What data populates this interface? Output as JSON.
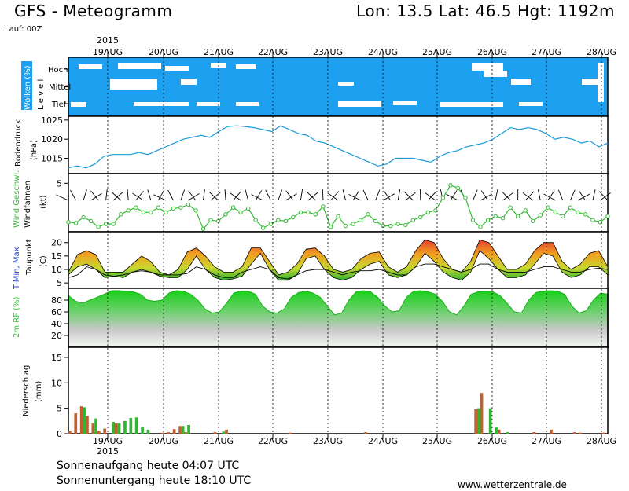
{
  "header": {
    "title": "GFS - Meteogramm",
    "location": "Lon: 13.5 Lat: 46.5 Hgt: 1192m",
    "run": "Lauf: 00Z",
    "year": "2015"
  },
  "footer": {
    "sunrise": "Sonnenaufgang heute 04:07 UTC",
    "sunset": "Sonnenuntergang heute 18:10 UTC",
    "credit": "www.wetterzentrale.de"
  },
  "colors": {
    "cloud_bg": "#1ea0f0",
    "pressure_line": "#1a9ad6",
    "wind_line": "#33bb33",
    "temp_max_label": "#e53030",
    "temp_min_label": "#2040e0",
    "humidity_green": "#2ad02a",
    "rain_green": "#32b432",
    "rain_brown": "#c06030"
  },
  "chart_data": [
    {
      "type": "heatmap",
      "panel": "clouds",
      "ylabel": "Wolken (%)",
      "ylabel2": "L e v e l",
      "levels": [
        "Hoch",
        "Mittel",
        "Tief"
      ],
      "x": [
        "19AUG",
        "20AUG",
        "21AUG",
        "22AUG",
        "23AUG",
        "24AUG",
        "25AUG",
        "26AUG",
        "27AUG",
        "28AUG"
      ]
    },
    {
      "type": "line",
      "panel": "pressure",
      "ylabel": "Bodendruck",
      "ylabel2": "(hPa)",
      "yticks": [
        1015,
        1020,
        1025
      ],
      "ylim": [
        1011,
        1026
      ],
      "values": [
        1012.5,
        1013,
        1012.5,
        1013.5,
        1015.5,
        1016,
        1016,
        1016,
        1016.5,
        1016,
        1017,
        1018,
        1019,
        1020,
        1020.5,
        1021,
        1020.5,
        1022,
        1023.3,
        1023.5,
        1023.3,
        1023,
        1022.5,
        1022,
        1023.5,
        1022.5,
        1021.5,
        1021,
        1019.5,
        1019,
        1018,
        1017,
        1016,
        1015,
        1014,
        1013,
        1013.5,
        1015,
        1015,
        1015,
        1014.5,
        1014,
        1015.5,
        1016.5,
        1017,
        1018,
        1018.5,
        1019,
        1020,
        1021.5,
        1023,
        1022.5,
        1023,
        1022.5,
        1021.5,
        1020,
        1020.5,
        1020,
        1019,
        1019.5,
        1018,
        1019
      ]
    },
    {
      "type": "line",
      "panel": "wind",
      "ylabel": "Wind Geschwi.",
      "ylabel2": "Windfahnen",
      "ylabel3": "(kt)",
      "yticks": [
        5
      ],
      "ylim": [
        0,
        6
      ],
      "values": [
        1,
        0.9,
        1.5,
        1.1,
        0.5,
        0.8,
        0.8,
        1.8,
        2.2,
        2.5,
        2,
        2,
        2.5,
        2,
        2.4,
        2.5,
        2.8,
        2.2,
        0.3,
        1.2,
        1.1,
        1.8,
        2.5,
        2,
        2.4,
        1.2,
        0.4,
        0.8,
        1.2,
        1.1,
        1.5,
        2,
        2,
        1.8,
        2.6,
        0.5,
        1.6,
        0.6,
        0.8,
        1.2,
        1.8,
        1.1,
        0.6,
        0.6,
        0.8,
        0.7,
        1.2,
        1.5,
        2,
        2.2,
        3.5,
        4.8,
        4.5,
        3.5,
        1.2,
        0.5,
        1.2,
        1.6,
        1.4,
        2.5,
        1.6,
        2.2,
        1.1,
        1.7,
        2.5,
        2,
        1.6,
        2.5,
        2,
        1.8,
        1.2,
        1,
        1.6
      ]
    },
    {
      "type": "area",
      "panel": "temperature",
      "ylabel": "T-Min, Max",
      "ylabel2": "Taupunkt",
      "ylabel3": "(C)",
      "yticks": [
        5,
        10,
        15,
        20
      ],
      "ylim": [
        3,
        24
      ],
      "series": [
        {
          "name": "Max",
          "values": [
            9,
            15.5,
            17,
            15.5,
            9,
            9,
            9,
            12,
            15,
            13,
            9,
            8,
            10,
            16.5,
            18,
            15,
            11,
            9,
            9,
            11,
            18,
            18,
            13,
            8,
            9,
            12,
            17.5,
            18,
            15,
            10,
            9,
            10,
            14,
            16,
            16.5,
            11,
            9,
            11,
            17,
            21,
            20,
            14,
            10,
            9,
            13,
            21,
            20,
            15,
            10,
            10,
            12,
            17,
            20,
            20,
            13,
            10,
            12,
            16,
            17,
            11
          ]
        },
        {
          "name": "Min",
          "values": [
            8,
            11,
            12,
            10,
            7,
            7.5,
            7,
            9,
            10,
            9,
            7.5,
            7,
            7,
            10,
            15,
            10,
            7,
            6,
            6.5,
            7.5,
            12,
            16,
            10,
            6,
            6,
            8,
            14,
            15,
            10,
            7,
            6,
            7,
            10,
            12,
            13,
            8,
            7,
            8,
            11,
            16,
            13,
            9,
            7,
            6,
            9,
            17,
            14,
            10,
            7,
            7,
            8,
            12,
            16,
            15,
            9,
            7,
            8,
            11,
            11,
            8
          ]
        },
        {
          "name": "Taupunkt",
          "values": [
            7,
            8,
            11,
            10,
            8,
            7.5,
            8,
            9,
            9.5,
            9,
            8,
            8,
            8,
            8.5,
            11,
            10,
            8,
            7,
            7,
            9,
            10,
            11,
            10,
            7,
            6.5,
            8,
            9.5,
            10,
            10,
            9,
            8,
            9,
            9.5,
            9.5,
            10,
            9,
            8,
            8,
            11,
            12,
            12,
            11,
            10,
            9,
            10,
            12,
            12,
            10,
            9,
            9,
            9,
            10,
            11,
            11,
            10,
            9,
            9,
            10,
            10.5,
            10
          ]
        }
      ]
    },
    {
      "type": "area",
      "panel": "humidity",
      "ylabel": "2m RF (%)",
      "yticks": [
        20,
        40,
        60,
        80
      ],
      "ylim": [
        0,
        100
      ],
      "values": [
        88,
        78,
        75,
        80,
        85,
        90,
        96,
        96,
        95,
        94,
        90,
        80,
        78,
        80,
        92,
        96,
        95,
        90,
        80,
        65,
        58,
        60,
        75,
        92,
        95,
        95,
        90,
        70,
        60,
        58,
        65,
        85,
        93,
        95,
        92,
        85,
        70,
        55,
        58,
        80,
        94,
        96,
        94,
        85,
        70,
        60,
        62,
        85,
        95,
        96,
        94,
        90,
        78,
        60,
        55,
        70,
        90,
        94,
        95,
        94,
        88,
        75,
        60,
        58,
        80,
        93,
        95,
        96,
        95,
        90,
        70,
        58,
        62,
        80,
        92,
        90
      ]
    },
    {
      "type": "bar",
      "panel": "precipitation",
      "ylabel": "Niederschlag",
      "ylabel2": "(mm)",
      "yticks": [
        0,
        5,
        10,
        15
      ],
      "ylim": [
        0,
        17
      ],
      "series": [
        {
          "name": "brown",
          "values": [
            0.5,
            4,
            5.4,
            3.5,
            2,
            0.6,
            1,
            0,
            2,
            0,
            0,
            0,
            0,
            0,
            0,
            0,
            0.2,
            0.3,
            0.9,
            1.5,
            0.3,
            0,
            0,
            0,
            0,
            0.3,
            0,
            0.8,
            0,
            0,
            0,
            0,
            0,
            0,
            0,
            0,
            0,
            0,
            0.2,
            0,
            0,
            0,
            0,
            0,
            0,
            0,
            0,
            0,
            0,
            0,
            0,
            0.3,
            0,
            0,
            0,
            0,
            0,
            0,
            0,
            0,
            0,
            0,
            0,
            0,
            0,
            0,
            0,
            0,
            0,
            0,
            4.8,
            8,
            0,
            0,
            0.8,
            0,
            0,
            0,
            0,
            0,
            0.3,
            0,
            0,
            0.8,
            0,
            0,
            0,
            0.3,
            0.2,
            0,
            0,
            0,
            0.2
          ]
        },
        {
          "name": "green",
          "values": [
            0,
            0,
            5.2,
            0,
            3,
            0,
            0,
            2.3,
            2,
            2.5,
            3.1,
            3.2,
            1.3,
            0.8,
            0,
            0,
            0,
            0,
            0,
            1.5,
            1.7,
            0,
            0,
            0,
            0,
            0,
            0.4,
            0,
            0,
            0,
            0,
            0,
            0,
            0,
            0,
            0,
            0,
            0,
            0,
            0,
            0,
            0,
            0,
            0,
            0,
            0,
            0,
            0,
            0,
            0,
            0,
            0,
            0,
            0,
            0,
            0,
            0,
            0,
            0,
            0,
            0,
            0,
            0,
            0,
            0,
            0,
            0,
            0,
            0,
            0,
            5,
            0,
            5,
            1.2,
            0,
            0.3,
            0,
            0,
            0,
            0,
            0,
            0,
            0,
            0,
            0,
            0,
            0,
            0,
            0,
            0,
            0
          ]
        }
      ]
    }
  ]
}
